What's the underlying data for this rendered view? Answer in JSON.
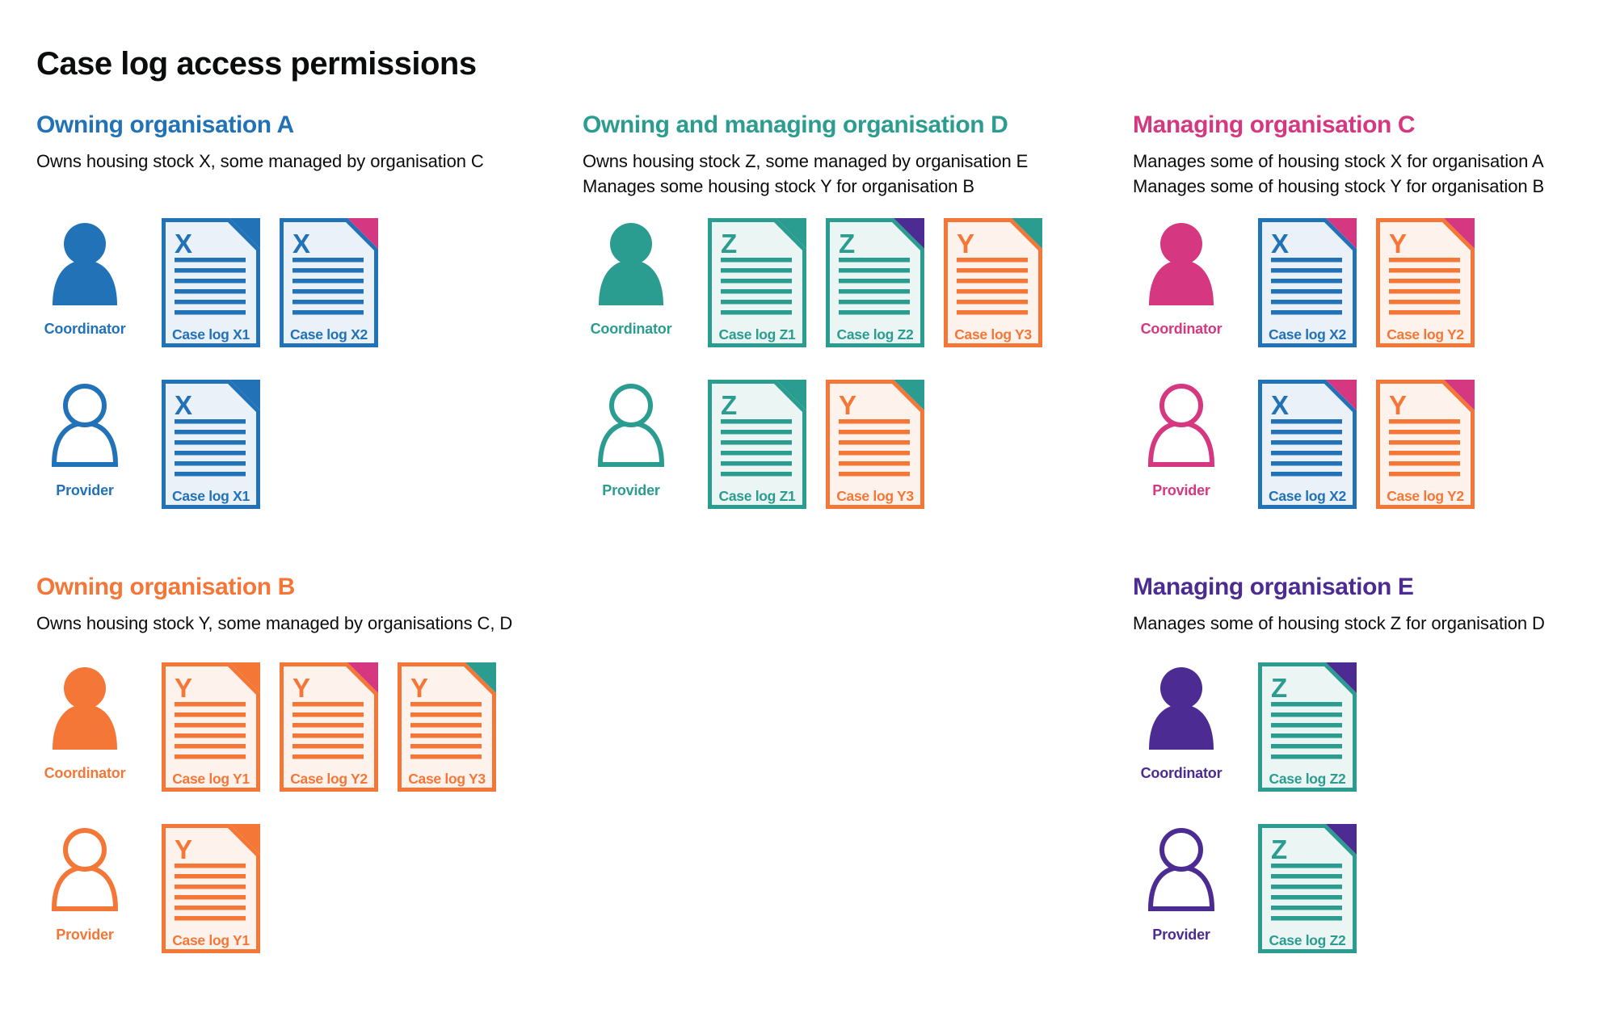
{
  "page": {
    "title": "Case log access permissions"
  },
  "colors": {
    "blue": "#2272b8",
    "teal": "#2b9c90",
    "pink": "#d53880",
    "orange": "#f47738",
    "purple": "#4c2c92",
    "text": "#0b0c0c",
    "tint_blue": "#eaf1f9",
    "tint_teal": "#ebf5f3",
    "tint_orange": "#fdf3ec"
  },
  "role_labels": {
    "coordinator": "Coordinator",
    "provider": "Provider"
  },
  "sections": [
    {
      "id": "org-a",
      "heading": "Owning organisation A",
      "color": "blue",
      "column": 1,
      "band": 1,
      "description": [
        "Owns housing stock X, some managed by organisation C"
      ],
      "rows": [
        {
          "role": "coordinator",
          "icon": "person-filled",
          "docs": [
            {
              "letter": "X",
              "label": "Case log X1",
              "base": "blue",
              "fold": "blue"
            },
            {
              "letter": "X",
              "label": "Case log X2",
              "base": "blue",
              "fold": "pink"
            }
          ]
        },
        {
          "role": "provider",
          "icon": "person-outline",
          "docs": [
            {
              "letter": "X",
              "label": "Case log X1",
              "base": "blue",
              "fold": "blue"
            }
          ]
        }
      ]
    },
    {
      "id": "org-d",
      "heading": "Owning and managing organisation D",
      "color": "teal",
      "column": 2,
      "band": 1,
      "description": [
        "Owns housing stock Z, some managed by organisation E",
        "Manages some housing stock Y for organisation B"
      ],
      "rows": [
        {
          "role": "coordinator",
          "icon": "person-filled",
          "docs": [
            {
              "letter": "Z",
              "label": "Case log Z1",
              "base": "teal",
              "fold": "teal"
            },
            {
              "letter": "Z",
              "label": "Case log Z2",
              "base": "teal",
              "fold": "purple"
            },
            {
              "letter": "Y",
              "label": "Case log Y3",
              "base": "orange",
              "fold": "teal"
            }
          ]
        },
        {
          "role": "provider",
          "icon": "person-outline",
          "docs": [
            {
              "letter": "Z",
              "label": "Case log Z1",
              "base": "teal",
              "fold": "teal"
            },
            {
              "letter": "Y",
              "label": "Case log Y3",
              "base": "orange",
              "fold": "teal"
            }
          ]
        }
      ]
    },
    {
      "id": "org-c",
      "heading": "Managing organisation C",
      "color": "pink",
      "column": 3,
      "band": 1,
      "description": [
        "Manages some of housing stock X for organisation A",
        "Manages some of housing stock Y for organisation B"
      ],
      "rows": [
        {
          "role": "coordinator",
          "icon": "person-filled",
          "docs": [
            {
              "letter": "X",
              "label": "Case log X2",
              "base": "blue",
              "fold": "pink"
            },
            {
              "letter": "Y",
              "label": "Case log Y2",
              "base": "orange",
              "fold": "pink"
            }
          ]
        },
        {
          "role": "provider",
          "icon": "person-outline",
          "docs": [
            {
              "letter": "X",
              "label": "Case log X2",
              "base": "blue",
              "fold": "pink"
            },
            {
              "letter": "Y",
              "label": "Case log Y2",
              "base": "orange",
              "fold": "pink"
            }
          ]
        }
      ]
    },
    {
      "id": "org-b",
      "heading": "Owning organisation B",
      "color": "orange",
      "column": 1,
      "band": 2,
      "description": [
        "Owns housing stock Y, some managed by organisations C, D"
      ],
      "rows": [
        {
          "role": "coordinator",
          "icon": "person-filled",
          "docs": [
            {
              "letter": "Y",
              "label": "Case log Y1",
              "base": "orange",
              "fold": "orange"
            },
            {
              "letter": "Y",
              "label": "Case log Y2",
              "base": "orange",
              "fold": "pink"
            },
            {
              "letter": "Y",
              "label": "Case log Y3",
              "base": "orange",
              "fold": "teal"
            }
          ]
        },
        {
          "role": "provider",
          "icon": "person-outline",
          "docs": [
            {
              "letter": "Y",
              "label": "Case log Y1",
              "base": "orange",
              "fold": "orange"
            }
          ]
        }
      ]
    },
    {
      "id": "org-e",
      "heading": "Managing organisation E",
      "color": "purple",
      "column": 3,
      "band": 2,
      "description": [
        "Manages some of housing stock Z for organisation D"
      ],
      "rows": [
        {
          "role": "coordinator",
          "icon": "person-filled",
          "docs": [
            {
              "letter": "Z",
              "label": "Case log Z2",
              "base": "teal",
              "fold": "purple"
            }
          ]
        },
        {
          "role": "provider",
          "icon": "person-outline",
          "docs": [
            {
              "letter": "Z",
              "label": "Case log Z2",
              "base": "teal",
              "fold": "purple"
            }
          ]
        }
      ]
    }
  ]
}
